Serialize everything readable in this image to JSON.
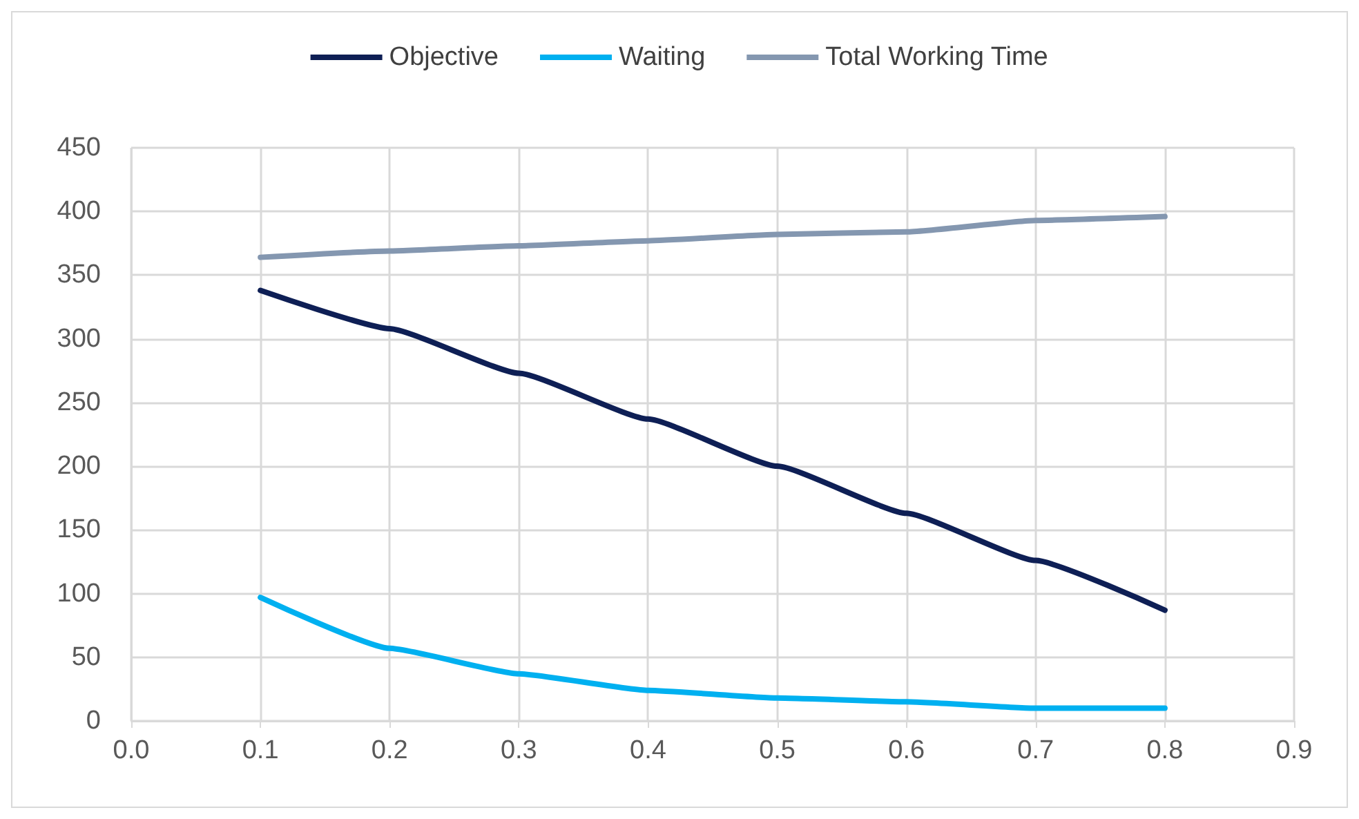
{
  "chart_data": {
    "type": "line",
    "x": [
      0.1,
      0.2,
      0.3,
      0.4,
      0.5,
      0.6,
      0.7,
      0.8
    ],
    "series": [
      {
        "name": "Objective",
        "color": "#0e1f55",
        "values": [
          338,
          308,
          273,
          237,
          200,
          163,
          126,
          87
        ]
      },
      {
        "name": "Waiting",
        "color": "#00b0f0",
        "values": [
          97,
          57,
          37,
          24,
          18,
          15,
          10,
          10
        ]
      },
      {
        "name": "Total Working Time",
        "color": "#8497b0",
        "values": [
          364,
          369,
          373,
          377,
          382,
          384,
          393,
          396
        ]
      }
    ],
    "xlim": [
      0,
      0.9
    ],
    "xticks": [
      {
        "value": 0,
        "label": "0.0"
      },
      {
        "value": 0.1,
        "label": "0.1"
      },
      {
        "value": 0.2,
        "label": "0.2"
      },
      {
        "value": 0.3,
        "label": "0.3"
      },
      {
        "value": 0.4,
        "label": "0.4"
      },
      {
        "value": 0.5,
        "label": "0.5"
      },
      {
        "value": 0.6,
        "label": "0.6"
      },
      {
        "value": 0.7,
        "label": "0.7"
      },
      {
        "value": 0.8,
        "label": "0.8"
      },
      {
        "value": 0.9,
        "label": "0.9"
      }
    ],
    "ylim": [
      0,
      450
    ],
    "yticks": [
      0,
      50,
      100,
      150,
      200,
      250,
      300,
      350,
      400,
      450
    ],
    "grid": true,
    "legend": "top",
    "marker": "none",
    "line_style": "solid"
  }
}
